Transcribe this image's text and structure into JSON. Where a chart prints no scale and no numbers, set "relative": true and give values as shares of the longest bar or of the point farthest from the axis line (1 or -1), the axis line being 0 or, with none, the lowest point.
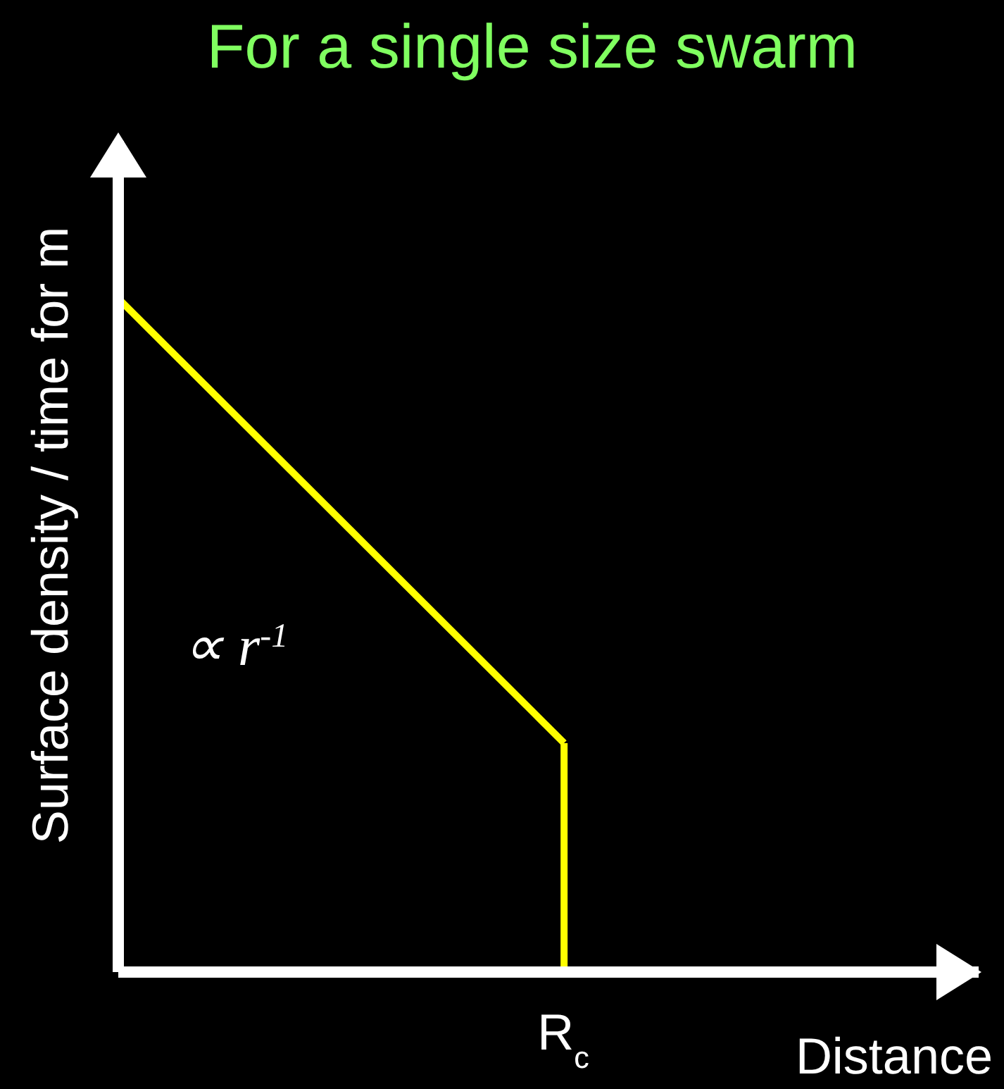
{
  "chart_data": {
    "type": "line",
    "title": "For a single size swarm",
    "ylabel": "Surface density / time for m",
    "relative": true,
    "categories": [
      null,
      null
    ],
    "series": [
      {
        "color": "#ffff00",
        "values": [
          1,
          0.34
        ]
      }
    ],
    "grid": false,
    "legend": false,
    "marker": "none",
    "line_style": "solid",
    "annotations": [
      "∝ r$^{-1}$",
      "Distance",
      "R$_{c}$"
    ]
  }
}
